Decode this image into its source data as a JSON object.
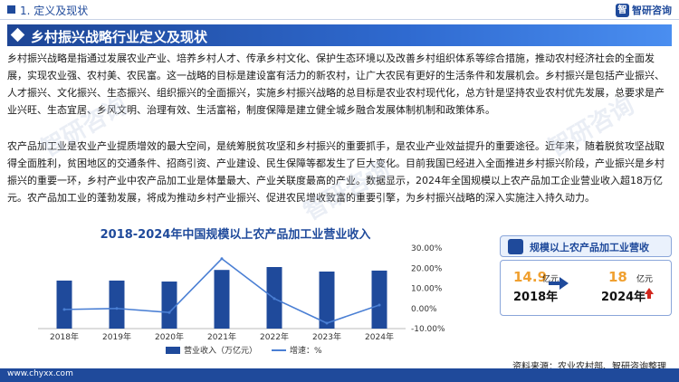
{
  "header": {
    "section": "1. 定义及现状",
    "logo_mark": "智",
    "logo_text": "智研咨询"
  },
  "title": "乡村振兴战略行业定义及现状",
  "paragraphs": [
    "乡村振兴战略是指通过发展农业产业、培养乡村人才、传承乡村文化、保护生态环境以及改善乡村组织体系等综合措施，推动农村经济社会的全面发展，实现农业强、农村美、农民富。这一战略的目标是建设富有活力的新农村，让广大农民有更好的生活条件和发展机会。乡村振兴是包括产业振兴、人才振兴、文化振兴、生态振兴、组织振兴的全面振兴，实施乡村振兴战略的总目标是农业农村现代化，总方针是坚持农业农村优先发展，总要求是产业兴旺、生态宜居、乡风文明、治理有效、生活富裕，制度保障是建立健全城乡融合发展体制机制和政策体系。",
    "农产品加工业是农业产业提质增效的最大空间，是统筹脱贫攻坚和乡村振兴的重要抓手，是农业产业效益提升的重要途径。近年来，随着脱贫攻坚战取得全面胜利，贫困地区的交通条件、招商引资、产业建设、民生保障等都发生了巨大变化。目前我国已经进入全面推进乡村振兴阶段，产业振兴是乡村振兴的重要一环，乡村产业中农产品加工业是体量最大、产业关联度最高的产业。数据显示，2024年全国规模以上农产品加工企业营业收入超18万亿元。农产品加工业的蓬勃发展，将成为推动乡村产业振兴、促进农民增收致富的重要引擎，为乡村振兴战略的深入实施注入持久动力。"
  ],
  "chart_data": {
    "type": "bar+line",
    "title": "2018-2024年中国规模以上农产品加工业营业收入",
    "categories": [
      "2018年",
      "2019年",
      "2020年",
      "2021年",
      "2022年",
      "2023年",
      "2024年"
    ],
    "series": [
      {
        "name": "营业收入（万亿元）",
        "type": "bar",
        "axis": "left",
        "color": "#1f4a9b",
        "values": [
          14.9,
          14.9,
          14.6,
          18.2,
          19.1,
          17.7,
          18.0
        ]
      },
      {
        "name": "增速：%",
        "type": "line",
        "axis": "right",
        "color": "#4a7fd4",
        "values": [
          -0.5,
          0.0,
          -2.0,
          24.7,
          4.9,
          -7.3,
          1.7
        ]
      }
    ],
    "y_left_lim": [
      0,
      25
    ],
    "y_right_lim": [
      -10,
      30
    ],
    "y_right_ticks": [
      "30.00%",
      "20.00%",
      "10.00%",
      "0.00%",
      "-10.00%"
    ]
  },
  "highlight": {
    "title": "规模以上农产品加工业营收",
    "from_value": "14.9",
    "from_unit": "亿元",
    "from_year": "2018年",
    "to_value": "18",
    "to_unit": "亿元",
    "to_year": "2024年"
  },
  "source": "资料来源：农业农村部、智研咨询整理",
  "footer": "www.chyxx.com",
  "watermark": "智研咨询"
}
